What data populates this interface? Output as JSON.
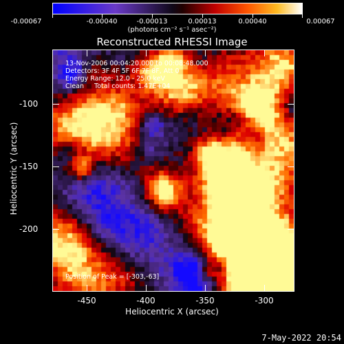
{
  "colorbar": {
    "ticks": [
      "-0.00067",
      "-0.00040",
      "-0.00013",
      "0.00013",
      "0.00040",
      "0.00067"
    ],
    "units": "(photons cm⁻² s⁻¹ asec⁻²)"
  },
  "plot": {
    "title": "Reconstructed RHESSI Image",
    "info": {
      "time": "13-Nov-2006 00:04:20.000 to 00:08:48.000",
      "detectors": "Detectors: 3F 4F 5F 6F 7F 8F, Att 0",
      "energy": "Energy Range: 12.0 - 25.0 keV",
      "clean": "Clean     Total counts: 1.47E+04"
    },
    "peak": "Position of Peak = [-303,-63]",
    "xlabel": "Heliocentric X (arcsec)",
    "ylabel": "Heliocentric Y (arcsec)",
    "xticks": [
      "-450",
      "-400",
      "-350",
      "-300"
    ],
    "yticks": [
      "-100",
      "-150",
      "-200"
    ]
  },
  "timestamp": "7-May-2022 20:54",
  "colors": {
    "background": "#000000",
    "foreground": "#ffffff",
    "colormap": [
      "#0000ff",
      "#5a35c8",
      "#6b3ea0",
      "#2a1840",
      "#000000",
      "#5a0000",
      "#c00000",
      "#ff4400",
      "#ff9900",
      "#ffdd44",
      "#ffffff"
    ]
  }
}
